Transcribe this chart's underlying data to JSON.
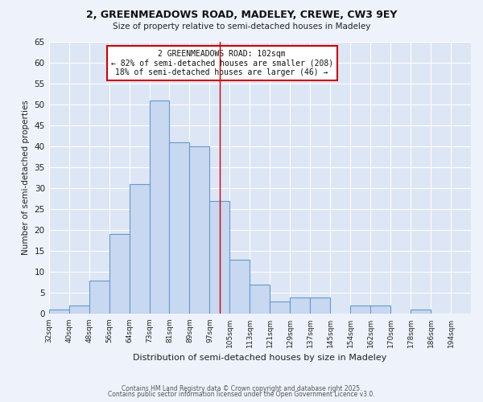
{
  "title1": "2, GREENMEADOWS ROAD, MADELEY, CREWE, CW3 9EY",
  "title2": "Size of property relative to semi-detached houses in Madeley",
  "xlabel": "Distribution of semi-detached houses by size in Madeley",
  "ylabel": "Number of semi-detached properties",
  "bin_labels": [
    "32sqm",
    "40sqm",
    "48sqm",
    "56sqm",
    "64sqm",
    "73sqm",
    "81sqm",
    "89sqm",
    "97sqm",
    "105sqm",
    "113sqm",
    "121sqm",
    "129sqm",
    "137sqm",
    "145sqm",
    "154sqm",
    "162sqm",
    "170sqm",
    "178sqm",
    "186sqm",
    "194sqm"
  ],
  "bin_left": [
    0,
    1,
    2,
    3,
    4,
    5,
    6,
    7,
    8,
    9,
    10,
    11,
    12,
    13,
    14,
    15,
    16,
    17,
    18,
    19,
    20
  ],
  "counts": [
    1,
    2,
    8,
    19,
    31,
    51,
    41,
    40,
    27,
    13,
    7,
    3,
    4,
    4,
    0,
    2,
    2,
    0,
    1,
    0,
    0
  ],
  "bar_color": "#c8d8f0",
  "bar_edge_color": "#6699cc",
  "property_bin": 8.5,
  "vline_color": "#cc0000",
  "annotation_line1": "2 GREENMEADOWS ROAD: 102sqm",
  "annotation_line2": "← 82% of semi-detached houses are smaller (208)",
  "annotation_line3": "18% of semi-detached houses are larger (46) →",
  "annotation_box_color": "#ffffff",
  "annotation_box_edge_color": "#cc0000",
  "background_color": "#eef2fa",
  "plot_bg_color": "#dde6f5",
  "grid_color": "#ffffff",
  "ylim": [
    0,
    65
  ],
  "yticks": [
    0,
    5,
    10,
    15,
    20,
    25,
    30,
    35,
    40,
    45,
    50,
    55,
    60,
    65
  ],
  "footer1": "Contains HM Land Registry data © Crown copyright and database right 2025.",
  "footer2": "Contains public sector information licensed under the Open Government Licence v3.0."
}
